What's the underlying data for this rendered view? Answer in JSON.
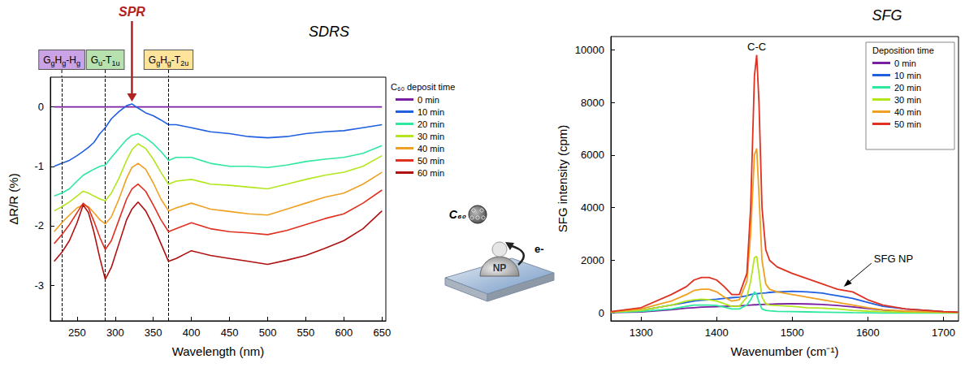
{
  "chart_data": [
    {
      "type": "line",
      "title": "SDRS",
      "x_label": "Wavelength (nm)",
      "y_label": "ΔR/R (%)",
      "legend_title": "C₆₀ deposit time",
      "legend": "right",
      "grid": false,
      "xlim": [
        215,
        655
      ],
      "xticks": [
        250,
        300,
        350,
        400,
        450,
        500,
        550,
        600,
        650
      ],
      "ylim": [
        -3.6,
        0.5
      ],
      "yticks": [
        -3,
        -2,
        -1,
        0
      ],
      "x": [
        220,
        230,
        240,
        250,
        258,
        265,
        272,
        280,
        287,
        295,
        305,
        315,
        322,
        330,
        340,
        350,
        360,
        370,
        380,
        400,
        425,
        450,
        475,
        500,
        525,
        550,
        575,
        600,
        625,
        650
      ],
      "series": [
        {
          "name": "0 min",
          "color": "#7b1fa2",
          "values": [
            0,
            0,
            0,
            0,
            0,
            0,
            0,
            0,
            0,
            0,
            0,
            0,
            0,
            0,
            0,
            0,
            0,
            0,
            0,
            0,
            0,
            0,
            0,
            0,
            0,
            0,
            0,
            0,
            0,
            0
          ]
        },
        {
          "name": "10 min",
          "color": "#1f5fe0",
          "values": [
            -1.0,
            -0.95,
            -0.9,
            -0.82,
            -0.75,
            -0.68,
            -0.6,
            -0.45,
            -0.35,
            -0.2,
            -0.08,
            0.02,
            0.05,
            -0.02,
            -0.1,
            -0.15,
            -0.22,
            -0.3,
            -0.3,
            -0.35,
            -0.42,
            -0.45,
            -0.5,
            -0.52,
            -0.5,
            -0.45,
            -0.42,
            -0.4,
            -0.35,
            -0.3
          ]
        },
        {
          "name": "20 min",
          "color": "#2ee8a0",
          "values": [
            -1.5,
            -1.45,
            -1.38,
            -1.25,
            -1.15,
            -1.1,
            -1.05,
            -1.0,
            -0.98,
            -0.85,
            -0.7,
            -0.55,
            -0.48,
            -0.45,
            -0.52,
            -0.62,
            -0.75,
            -0.9,
            -0.85,
            -0.85,
            -0.95,
            -1.0,
            -1.0,
            -1.02,
            -0.98,
            -0.92,
            -0.88,
            -0.85,
            -0.78,
            -0.65
          ]
        },
        {
          "name": "30 min",
          "color": "#b4e61e",
          "values": [
            -1.75,
            -1.68,
            -1.6,
            -1.5,
            -1.42,
            -1.45,
            -1.5,
            -1.55,
            -1.58,
            -1.45,
            -1.2,
            -0.9,
            -0.72,
            -0.62,
            -0.7,
            -0.88,
            -1.1,
            -1.3,
            -1.25,
            -1.22,
            -1.3,
            -1.32,
            -1.35,
            -1.38,
            -1.3,
            -1.22,
            -1.15,
            -1.1,
            -1.0,
            -0.82
          ]
        },
        {
          "name": "40 min",
          "color": "#f0a020",
          "values": [
            -2.1,
            -1.95,
            -1.82,
            -1.7,
            -1.65,
            -1.68,
            -1.78,
            -1.9,
            -1.97,
            -1.85,
            -1.55,
            -1.2,
            -1.02,
            -0.95,
            -1.05,
            -1.28,
            -1.55,
            -1.75,
            -1.7,
            -1.62,
            -1.72,
            -1.76,
            -1.8,
            -1.82,
            -1.72,
            -1.62,
            -1.52,
            -1.45,
            -1.3,
            -1.1
          ]
        },
        {
          "name": "50 min",
          "color": "#e03020",
          "values": [
            -2.3,
            -2.15,
            -1.98,
            -1.78,
            -1.62,
            -1.7,
            -1.92,
            -2.2,
            -2.4,
            -2.25,
            -1.9,
            -1.55,
            -1.38,
            -1.3,
            -1.42,
            -1.65,
            -1.9,
            -2.1,
            -2.05,
            -1.95,
            -2.05,
            -2.1,
            -2.12,
            -2.15,
            -2.08,
            -1.98,
            -1.88,
            -1.8,
            -1.62,
            -1.4
          ]
        },
        {
          "name": "60 min",
          "color": "#b01010",
          "values": [
            -2.6,
            -2.45,
            -2.25,
            -1.95,
            -1.65,
            -1.78,
            -2.1,
            -2.55,
            -2.9,
            -2.7,
            -2.3,
            -1.9,
            -1.72,
            -1.6,
            -1.75,
            -2.0,
            -2.3,
            -2.6,
            -2.55,
            -2.42,
            -2.5,
            -2.55,
            -2.6,
            -2.65,
            -2.58,
            -2.5,
            -2.38,
            -2.25,
            -2.05,
            -1.75
          ]
        }
      ],
      "bands": [
        {
          "label_parts": [
            [
              "G",
              "g"
            ],
            [
              "H",
              "g"
            ],
            [
              "-H",
              "g"
            ]
          ],
          "x": 230,
          "color": "#c9a3e6"
        },
        {
          "label_parts": [
            [
              "G",
              "u"
            ],
            [
              "-T",
              "1u"
            ]
          ],
          "x": 287,
          "color": "#b7e2b0"
        },
        {
          "label_parts": [
            [
              "G",
              "g"
            ],
            [
              "H",
              "g"
            ],
            [
              "-T",
              "2u"
            ]
          ],
          "x": 370,
          "color": "#fde49a"
        }
      ],
      "annotations": [
        {
          "text": "SPR",
          "x": 322,
          "y": 0.05,
          "color": "#b22222"
        }
      ]
    },
    {
      "type": "line",
      "title": "SFG",
      "x_label": "Wavenumber (cm⁻¹)",
      "y_label": "SFG intensity (cpm)",
      "legend_title": "Deposition time",
      "legend": "upper right",
      "grid": false,
      "xlim": [
        1260,
        1720
      ],
      "xticks": [
        1300,
        1400,
        1500,
        1600,
        1700
      ],
      "ylim": [
        -300,
        10500
      ],
      "yticks": [
        0,
        2000,
        4000,
        6000,
        8000,
        10000
      ],
      "x": [
        1260,
        1300,
        1340,
        1360,
        1370,
        1380,
        1390,
        1400,
        1410,
        1420,
        1430,
        1440,
        1445,
        1450,
        1453,
        1456,
        1460,
        1465,
        1470,
        1480,
        1500,
        1520,
        1540,
        1560,
        1580,
        1600,
        1620,
        1650,
        1700,
        1720
      ],
      "series": [
        {
          "name": "0 min",
          "color": "#7b1fa2",
          "values": [
            10,
            40,
            120,
            180,
            200,
            220,
            230,
            240,
            250,
            260,
            270,
            290,
            300,
            310,
            310,
            320,
            320,
            330,
            330,
            340,
            350,
            340,
            320,
            280,
            230,
            170,
            110,
            60,
            20,
            10
          ]
        },
        {
          "name": "10 min",
          "color": "#1f5fe0",
          "values": [
            30,
            100,
            300,
            400,
            450,
            480,
            500,
            520,
            550,
            580,
            600,
            650,
            700,
            720,
            730,
            740,
            750,
            760,
            780,
            800,
            820,
            800,
            750,
            650,
            550,
            400,
            250,
            150,
            50,
            30
          ]
        },
        {
          "name": "20 min",
          "color": "#2ee8a0",
          "values": [
            20,
            60,
            150,
            250,
            300,
            300,
            300,
            280,
            220,
            150,
            150,
            300,
            500,
            800,
            700,
            400,
            150,
            100,
            80,
            60,
            50,
            40,
            30,
            20,
            10,
            5,
            0,
            0,
            0,
            0
          ]
        },
        {
          "name": "30 min",
          "color": "#b4e61e",
          "values": [
            30,
            100,
            300,
            450,
            500,
            520,
            500,
            450,
            350,
            250,
            250,
            600,
            1200,
            2100,
            2150,
            1500,
            600,
            350,
            300,
            280,
            250,
            200,
            180,
            150,
            100,
            70,
            50,
            30,
            20,
            10
          ]
        },
        {
          "name": "40 min",
          "color": "#f0a020",
          "values": [
            40,
            150,
            450,
            700,
            850,
            900,
            900,
            800,
            600,
            450,
            500,
            1200,
            3000,
            6000,
            6250,
            4500,
            2000,
            1100,
            900,
            800,
            700,
            600,
            500,
            400,
            300,
            200,
            120,
            70,
            30,
            20
          ]
        },
        {
          "name": "50 min",
          "color": "#e03020",
          "values": [
            50,
            200,
            700,
            1000,
            1250,
            1350,
            1350,
            1250,
            1000,
            700,
            700,
            1500,
            4000,
            9000,
            9800,
            8000,
            4000,
            2400,
            2000,
            1750,
            1500,
            1300,
            1100,
            900,
            800,
            500,
            300,
            150,
            50,
            30
          ]
        }
      ],
      "annotations": [
        {
          "text": "C-C",
          "x": 1453,
          "y": 9800
        },
        {
          "text": "SFG NP",
          "x": 1565,
          "y": 900
        }
      ]
    }
  ],
  "diagram": {
    "molecule": "C₆₀",
    "particle": "NP",
    "electron": "e-"
  }
}
